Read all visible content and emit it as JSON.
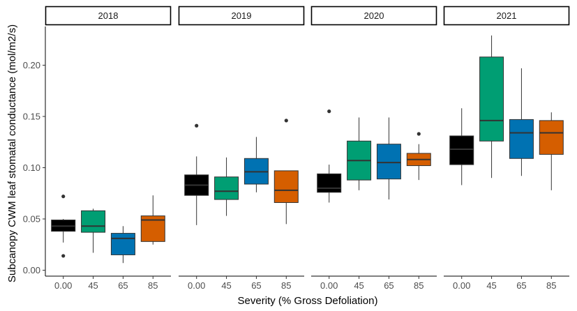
{
  "chart_data": {
    "type": "boxplot",
    "xlabel": "Severity (% Gross Defoliation)",
    "ylabel": "Subcanopy CWM leaf stomatal conductance (mol/m2/s)",
    "ylim": [
      -0.005,
      0.24
    ],
    "yticks": [
      0.0,
      0.05,
      0.1,
      0.15,
      0.2
    ],
    "ytick_labels": [
      "0.00",
      "0.05",
      "0.10",
      "0.15",
      "0.20"
    ],
    "categories": [
      "0.00",
      "45",
      "65",
      "85"
    ],
    "colors": [
      "#000000",
      "#009E73",
      "#0072B2",
      "#D55E00"
    ],
    "grid": false,
    "legend": "none",
    "facets": [
      {
        "label": "2018",
        "boxes": [
          {
            "category": "0.00",
            "lower_whisker": 0.027,
            "q1": 0.038,
            "median": 0.043,
            "q3": 0.049,
            "upper_whisker": 0.05,
            "outliers": [
              0.014,
              0.072
            ]
          },
          {
            "category": "45",
            "lower_whisker": 0.017,
            "q1": 0.037,
            "median": 0.043,
            "q3": 0.058,
            "upper_whisker": 0.06,
            "outliers": []
          },
          {
            "category": "65",
            "lower_whisker": 0.007,
            "q1": 0.015,
            "median": 0.031,
            "q3": 0.036,
            "upper_whisker": 0.043,
            "outliers": []
          },
          {
            "category": "85",
            "lower_whisker": 0.025,
            "q1": 0.028,
            "median": 0.049,
            "q3": 0.053,
            "upper_whisker": 0.073,
            "outliers": []
          }
        ]
      },
      {
        "label": "2019",
        "boxes": [
          {
            "category": "0.00",
            "lower_whisker": 0.044,
            "q1": 0.073,
            "median": 0.083,
            "q3": 0.093,
            "upper_whisker": 0.111,
            "outliers": [
              0.141
            ]
          },
          {
            "category": "45",
            "lower_whisker": 0.053,
            "q1": 0.069,
            "median": 0.077,
            "q3": 0.091,
            "upper_whisker": 0.11,
            "outliers": []
          },
          {
            "category": "65",
            "lower_whisker": 0.076,
            "q1": 0.084,
            "median": 0.096,
            "q3": 0.109,
            "upper_whisker": 0.13,
            "outliers": []
          },
          {
            "category": "85",
            "lower_whisker": 0.045,
            "q1": 0.066,
            "median": 0.078,
            "q3": 0.097,
            "upper_whisker": 0.097,
            "outliers": [
              0.146
            ]
          }
        ]
      },
      {
        "label": "2020",
        "boxes": [
          {
            "category": "0.00",
            "lower_whisker": 0.066,
            "q1": 0.076,
            "median": 0.08,
            "q3": 0.094,
            "upper_whisker": 0.103,
            "outliers": [
              0.155
            ]
          },
          {
            "category": "45",
            "lower_whisker": 0.078,
            "q1": 0.088,
            "median": 0.107,
            "q3": 0.126,
            "upper_whisker": 0.149,
            "outliers": []
          },
          {
            "category": "65",
            "lower_whisker": 0.069,
            "q1": 0.089,
            "median": 0.105,
            "q3": 0.123,
            "upper_whisker": 0.149,
            "outliers": []
          },
          {
            "category": "85",
            "lower_whisker": 0.088,
            "q1": 0.102,
            "median": 0.108,
            "q3": 0.114,
            "upper_whisker": 0.123,
            "outliers": [
              0.133
            ]
          }
        ]
      },
      {
        "label": "2021",
        "boxes": [
          {
            "category": "0.00",
            "lower_whisker": 0.083,
            "q1": 0.103,
            "median": 0.118,
            "q3": 0.131,
            "upper_whisker": 0.158,
            "outliers": []
          },
          {
            "category": "45",
            "lower_whisker": 0.09,
            "q1": 0.126,
            "median": 0.146,
            "q3": 0.208,
            "upper_whisker": 0.229,
            "outliers": []
          },
          {
            "category": "65",
            "lower_whisker": 0.092,
            "q1": 0.109,
            "median": 0.134,
            "q3": 0.147,
            "upper_whisker": 0.197,
            "outliers": []
          },
          {
            "category": "85",
            "lower_whisker": 0.078,
            "q1": 0.113,
            "median": 0.134,
            "q3": 0.146,
            "upper_whisker": 0.154,
            "outliers": []
          }
        ]
      }
    ]
  }
}
